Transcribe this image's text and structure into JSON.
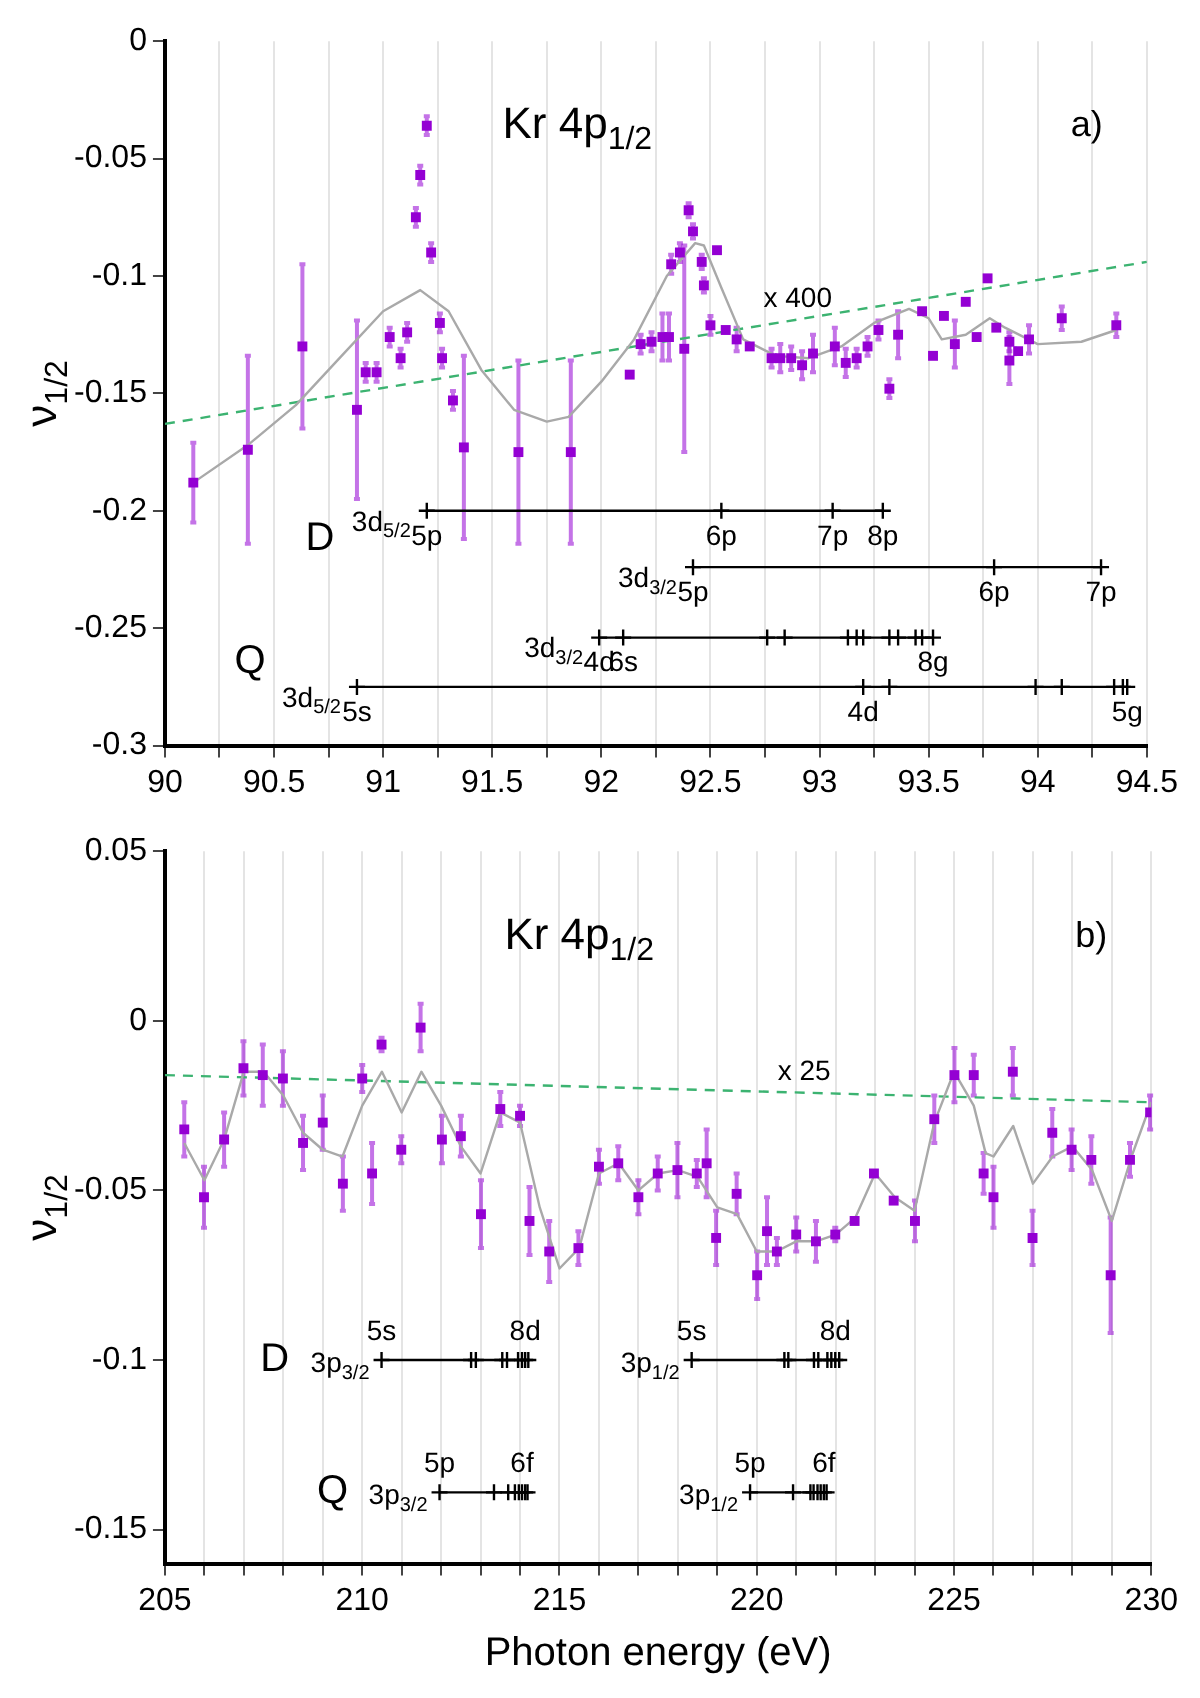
{
  "chart_data": [
    {
      "type": "scatter",
      "title": "Kr 4p$_{1/2}$",
      "ylabel": "ν$_{1/2}$",
      "xlim": [
        90,
        94.5
      ],
      "ylim": [
        -0.3,
        0
      ],
      "grid": "x",
      "xticks": [
        90,
        {
          "value": 90.25,
          "label": null
        },
        90.5,
        {
          "value": 90.75,
          "label": null
        },
        91,
        {
          "value": 91.25,
          "label": null
        },
        91.5,
        {
          "value": 91.75,
          "label": null
        },
        92,
        {
          "value": 92.25,
          "label": null
        },
        92.5,
        {
          "value": 92.75,
          "label": null
        },
        93,
        {
          "value": 93.25,
          "label": null
        },
        93.5,
        {
          "value": 93.75,
          "label": null
        },
        94,
        {
          "value": 94.25,
          "label": null
        },
        94.5
      ],
      "yticks": [
        -0.3,
        -0.25,
        -0.2,
        -0.15,
        -0.1,
        -0.05,
        0
      ],
      "series": [
        {
          "type": "scatter",
          "color": "#9400d3",
          "marker": "square",
          "x": [
            90.13,
            90.38,
            90.63,
            90.88,
            90.92,
            90.97,
            91.03,
            91.08,
            91.11,
            91.15,
            91.17,
            91.2,
            91.22,
            91.26,
            91.27,
            91.32,
            91.37,
            91.62,
            91.86,
            92.13,
            92.18,
            92.23,
            92.28,
            92.31,
            92.32,
            92.36,
            92.38,
            92.4,
            92.42,
            92.46,
            92.47,
            92.5,
            92.53,
            92.57,
            92.62,
            92.68,
            92.78,
            92.82,
            92.87,
            92.92,
            92.97,
            93.07,
            93.12,
            93.17,
            93.22,
            93.27,
            93.32,
            93.36,
            93.47,
            93.52,
            93.57,
            93.62,
            93.67,
            93.72,
            93.77,
            93.81,
            93.87,
            93.87,
            93.91,
            93.96,
            94.11,
            94.36
          ],
          "values": [
            -0.188,
            -0.174,
            -0.13,
            -0.157,
            -0.141,
            -0.141,
            -0.126,
            -0.135,
            -0.124,
            -0.075,
            -0.057,
            -0.036,
            -0.09,
            -0.12,
            -0.135,
            -0.153,
            -0.173,
            -0.175,
            -0.175,
            -0.142,
            -0.129,
            -0.128,
            -0.126,
            -0.126,
            -0.095,
            -0.09,
            -0.131,
            -0.072,
            -0.081,
            -0.094,
            -0.104,
            -0.121,
            -0.089,
            -0.123,
            -0.127,
            -0.13,
            -0.135,
            -0.135,
            -0.135,
            -0.138,
            -0.133,
            -0.13,
            -0.137,
            -0.135,
            -0.13,
            -0.123,
            -0.148,
            -0.125,
            -0.115,
            -0.134,
            -0.117,
            -0.129,
            -0.111,
            -0.126,
            -0.101,
            -0.122,
            -0.128,
            -0.136,
            -0.132,
            -0.127,
            -0.118,
            -0.121
          ],
          "errors": [
            0.017,
            0.04,
            0.035,
            0.038,
            0.004,
            0.004,
            0.004,
            0.004,
            0.004,
            0.004,
            0.004,
            0.004,
            0.004,
            0.004,
            0.004,
            0.004,
            0.039,
            0.039,
            0.039,
            null,
            0.004,
            0.004,
            0.01,
            0.01,
            0.004,
            0.004,
            0.044,
            0.003,
            0.003,
            0.003,
            0.003,
            0.004,
            null,
            null,
            0.005,
            null,
            0.004,
            0.006,
            0.005,
            0.006,
            0.008,
            0.008,
            0.006,
            0.004,
            0.004,
            0.004,
            0.004,
            0.01,
            null,
            null,
            null,
            0.01,
            null,
            null,
            null,
            null,
            0.004,
            0.01,
            null,
            0.006,
            0.005,
            0.005
          ]
        },
        {
          "type": "line",
          "color": "#a9a9a9",
          "marker": "none",
          "x": [
            90.13,
            90.38,
            90.6,
            90.8,
            91.0,
            91.17,
            91.3,
            91.45,
            91.6,
            91.75,
            91.85,
            92.0,
            92.15,
            92.3,
            92.43,
            92.47,
            92.55,
            92.65,
            92.8,
            92.95,
            93.1,
            93.25,
            93.41,
            93.5,
            93.56,
            93.67,
            93.78,
            93.85,
            94.0,
            94.2,
            94.36
          ],
          "values": [
            -0.188,
            -0.172,
            -0.155,
            -0.135,
            -0.115,
            -0.106,
            -0.115,
            -0.14,
            -0.157,
            -0.162,
            -0.16,
            -0.145,
            -0.127,
            -0.1,
            -0.086,
            -0.087,
            -0.105,
            -0.127,
            -0.134,
            -0.135,
            -0.13,
            -0.12,
            -0.114,
            -0.118,
            -0.127,
            -0.125,
            -0.118,
            -0.122,
            -0.129,
            -0.128,
            -0.123
          ]
        },
        {
          "type": "line",
          "color": "#3cb371",
          "marker": "none",
          "line_style": "dashed",
          "x": [
            90,
            94.5
          ],
          "values": [
            -0.163,
            -0.094
          ]
        },
        {
          "type": "line",
          "name": "3d$_{5/2}$",
          "color": "#000000",
          "marker": "cross",
          "x": [
            91.2,
            92.55,
            93.06,
            93.29
          ],
          "values": [
            -0.2,
            -0.2,
            -0.2,
            -0.2
          ]
        },
        {
          "type": "line",
          "name": "3d$_{3/2}$",
          "color": "#000000",
          "marker": "cross",
          "x": [
            92.42,
            93.8,
            94.29
          ],
          "values": [
            -0.224,
            -0.224,
            -0.224
          ]
        },
        {
          "type": "line",
          "name": "3d$_{3/2}$",
          "color": "#000000",
          "marker": "cross",
          "x": [
            91.99,
            92.1,
            92.76,
            92.84,
            93.13,
            93.17,
            93.2,
            93.32,
            93.36,
            93.44,
            93.47,
            93.52
          ],
          "values": [
            -0.254,
            -0.254,
            -0.254,
            -0.254,
            -0.254,
            -0.254,
            -0.254,
            -0.254,
            -0.254,
            -0.254,
            -0.254,
            -0.254
          ]
        },
        {
          "type": "line",
          "name": "3d$_{5/2}$",
          "color": "#000000",
          "marker": "cross",
          "x": [
            90.88,
            93.2,
            93.32,
            93.99,
            94.11,
            94.35,
            94.39,
            94.41
          ],
          "values": [
            -0.275,
            -0.275,
            -0.275,
            -0.275,
            -0.275,
            -0.275,
            -0.275,
            -0.275
          ]
        }
      ],
      "annotations": [
        "a)",
        "D",
        "Q",
        {
          "text": "x 400",
          "x": 92.9,
          "y": -0.1185
        },
        {
          "text": "5p",
          "x": 91.2,
          "y": -0.2
        },
        {
          "text": "6p",
          "x": 92.55,
          "y": -0.2
        },
        {
          "text": "7p",
          "x": 93.06,
          "y": -0.2
        },
        {
          "text": "8p",
          "x": 93.29,
          "y": -0.2
        },
        {
          "text": "5p",
          "x": 92.42,
          "y": -0.224
        },
        {
          "text": "6p",
          "x": 93.8,
          "y": -0.224
        },
        {
          "text": "7p",
          "x": 94.29,
          "y": -0.224
        },
        {
          "text": "4d",
          "x": 91.99,
          "y": -0.254
        },
        {
          "text": "6s",
          "x": 92.1,
          "y": -0.254
        },
        {
          "text": "8g",
          "x": 93.52,
          "y": -0.254
        },
        {
          "text": "5s",
          "x": 90.88,
          "y": -0.275
        },
        {
          "text": "4d",
          "x": 93.2,
          "y": -0.275
        },
        {
          "text": "5g",
          "x": 94.41,
          "y": -0.275
        }
      ]
    },
    {
      "type": "scatter",
      "title": "Kr 4p$_{1/2}$",
      "ylabel": "ν$_{1/2}$",
      "xlabel": "Photon energy (eV)",
      "xlim": [
        205,
        230
      ],
      "ylim": [
        -0.16,
        0.05
      ],
      "grid": "x",
      "xticks": [
        205,
        {
          "value": 206,
          "label": null
        },
        {
          "value": 207,
          "label": null
        },
        {
          "value": 208,
          "label": null
        },
        {
          "value": 209,
          "label": null
        },
        210,
        {
          "value": 211,
          "label": null
        },
        {
          "value": 212,
          "label": null
        },
        {
          "value": 213,
          "label": null
        },
        {
          "value": 214,
          "label": null
        },
        215,
        {
          "value": 216,
          "label": null
        },
        {
          "value": 217,
          "label": null
        },
        {
          "value": 218,
          "label": null
        },
        {
          "value": 219,
          "label": null
        },
        220,
        {
          "value": 221,
          "label": null
        },
        {
          "value": 222,
          "label": null
        },
        {
          "value": 223,
          "label": null
        },
        {
          "value": 224,
          "label": null
        },
        225,
        {
          "value": 226,
          "label": null
        },
        {
          "value": 227,
          "label": null
        },
        {
          "value": 228,
          "label": null
        },
        {
          "value": 229,
          "label": null
        },
        230
      ],
      "yticks": [
        -0.15,
        -0.1,
        -0.05,
        0,
        0.05
      ],
      "series": [
        {
          "type": "scatter",
          "color": "#9400d3",
          "marker": "square",
          "x": [
            205.49,
            205.99,
            206.5,
            206.99,
            207.48,
            207.99,
            208.5,
            209.0,
            209.51,
            210.0,
            210.25,
            210.49,
            210.99,
            211.48,
            212.02,
            212.5,
            213.01,
            213.5,
            214.0,
            214.24,
            214.74,
            215.48,
            216.0,
            216.49,
            217.0,
            217.49,
            217.99,
            218.48,
            218.73,
            218.97,
            219.49,
            220.01,
            220.26,
            220.51,
            221.0,
            221.5,
            221.99,
            222.48,
            222.97,
            223.47,
            224.01,
            224.5,
            225.01,
            225.5,
            225.75,
            226.0,
            226.49,
            226.99,
            227.49,
            227.98,
            228.48,
            228.97,
            229.46,
            229.97
          ],
          "values": [
            -0.032,
            -0.052,
            -0.035,
            -0.014,
            -0.016,
            -0.017,
            -0.036,
            -0.03,
            -0.048,
            -0.017,
            -0.045,
            -0.007,
            -0.038,
            -0.002,
            -0.035,
            -0.034,
            -0.057,
            -0.026,
            -0.028,
            -0.059,
            -0.068,
            -0.067,
            -0.043,
            -0.042,
            -0.052,
            -0.045,
            -0.044,
            -0.045,
            -0.042,
            -0.064,
            -0.051,
            -0.075,
            -0.062,
            -0.068,
            -0.063,
            -0.065,
            -0.063,
            -0.059,
            -0.045,
            -0.053,
            -0.059,
            -0.029,
            -0.016,
            -0.016,
            -0.045,
            -0.052,
            -0.015,
            -0.064,
            -0.033,
            -0.038,
            -0.041,
            -0.075,
            -0.041,
            -0.027
          ],
          "errors": [
            0.008,
            0.009,
            0.008,
            0.008,
            0.009,
            0.008,
            0.008,
            0.008,
            0.008,
            0.004,
            0.009,
            0.002,
            0.004,
            0.007,
            0.007,
            0.006,
            0.01,
            0.005,
            0.003,
            0.01,
            0.009,
            0.005,
            0.005,
            0.005,
            0.005,
            0.005,
            0.008,
            0.004,
            0.01,
            0.008,
            0.006,
            0.007,
            0.01,
            0.004,
            0.005,
            0.006,
            0.002,
            null,
            null,
            null,
            0.006,
            0.007,
            0.008,
            0.006,
            0.006,
            0.009,
            0.007,
            0.008,
            0.007,
            0.006,
            0.007,
            0.017,
            0.005,
            0.005
          ]
        },
        {
          "type": "line",
          "color": "#a9a9a9",
          "marker": "none",
          "x": [
            205.49,
            206,
            206.5,
            207,
            207.5,
            208,
            208.5,
            209,
            209.5,
            210,
            210.5,
            211,
            211.5,
            212,
            212.5,
            213,
            213.5,
            214,
            214.5,
            215,
            215.5,
            216,
            216.5,
            217,
            217.5,
            218,
            218.5,
            219,
            219.5,
            220,
            220.5,
            221,
            221.5,
            222,
            222.5,
            223,
            223.5,
            224,
            224.5,
            225,
            225.5,
            225.8,
            226,
            226.5,
            227,
            227.5,
            228,
            228.5,
            229,
            229.5,
            230
          ],
          "values": [
            -0.036,
            -0.047,
            -0.035,
            -0.015,
            -0.015,
            -0.022,
            -0.033,
            -0.038,
            -0.04,
            -0.025,
            -0.015,
            -0.027,
            -0.015,
            -0.025,
            -0.037,
            -0.045,
            -0.027,
            -0.03,
            -0.055,
            -0.073,
            -0.067,
            -0.045,
            -0.042,
            -0.05,
            -0.045,
            -0.044,
            -0.046,
            -0.055,
            -0.057,
            -0.068,
            -0.068,
            -0.065,
            -0.065,
            -0.063,
            -0.058,
            -0.045,
            -0.052,
            -0.056,
            -0.03,
            -0.015,
            -0.025,
            -0.039,
            -0.04,
            -0.031,
            -0.048,
            -0.04,
            -0.037,
            -0.044,
            -0.059,
            -0.04,
            -0.024
          ]
        },
        {
          "type": "line",
          "color": "#3cb371",
          "marker": "none",
          "line_style": "dashed",
          "x": [
            205,
            230
          ],
          "values": [
            -0.016,
            -0.024
          ]
        },
        {
          "type": "line",
          "name": "3p$_{3/2}$",
          "color": "#000000",
          "marker": "cross",
          "x": [
            210.49,
            212.76,
            212.88,
            213.55,
            213.67,
            213.95,
            214.05,
            214.13,
            214.21
          ],
          "values": [
            -0.1,
            -0.1,
            -0.1,
            -0.1,
            -0.1,
            -0.1,
            -0.1,
            -0.1,
            -0.1
          ]
        },
        {
          "type": "line",
          "name": "3p$_{1/2}$",
          "color": "#000000",
          "marker": "cross",
          "x": [
            218.35,
            220.7,
            220.8,
            221.45,
            221.56,
            221.79,
            221.89,
            221.99,
            222.09
          ],
          "values": [
            -0.1,
            -0.1,
            -0.1,
            -0.1,
            -0.1,
            -0.1,
            -0.1,
            -0.1,
            -0.1
          ]
        },
        {
          "type": "line",
          "name": "3p$_{3/2}$",
          "color": "#000000",
          "marker": "cross",
          "x": [
            211.96,
            213.34,
            213.7,
            213.87,
            213.97,
            214.05,
            214.13,
            214.19
          ],
          "values": [
            -0.139,
            -0.139,
            -0.139,
            -0.139,
            -0.139,
            -0.139,
            -0.139,
            -0.139
          ]
        },
        {
          "type": "line",
          "name": "3p$_{1/2}$",
          "color": "#000000",
          "marker": "cross",
          "x": [
            219.83,
            220.92,
            221.36,
            221.44,
            221.54,
            221.62,
            221.7,
            221.77
          ],
          "values": [
            -0.139,
            -0.139,
            -0.139,
            -0.139,
            -0.139,
            -0.139,
            -0.139,
            -0.139
          ]
        }
      ],
      "annotations": [
        "b)",
        "D",
        "Q",
        {
          "text": "x 25",
          "x": 221.2,
          "y": -0.0212
        },
        {
          "text": "5s",
          "x": 210.49,
          "y": -0.1
        },
        {
          "text": "8d",
          "x": 214.13,
          "y": -0.1
        },
        {
          "text": "5s",
          "x": 218.35,
          "y": -0.1
        },
        {
          "text": "8d",
          "x": 221.99,
          "y": -0.1
        },
        {
          "text": "5p",
          "x": 211.96,
          "y": -0.139
        },
        {
          "text": "6f",
          "x": 214.05,
          "y": -0.139
        },
        {
          "text": "5p",
          "x": 219.83,
          "y": -0.139
        },
        {
          "text": "6f",
          "x": 221.7,
          "y": -0.139
        }
      ]
    }
  ]
}
